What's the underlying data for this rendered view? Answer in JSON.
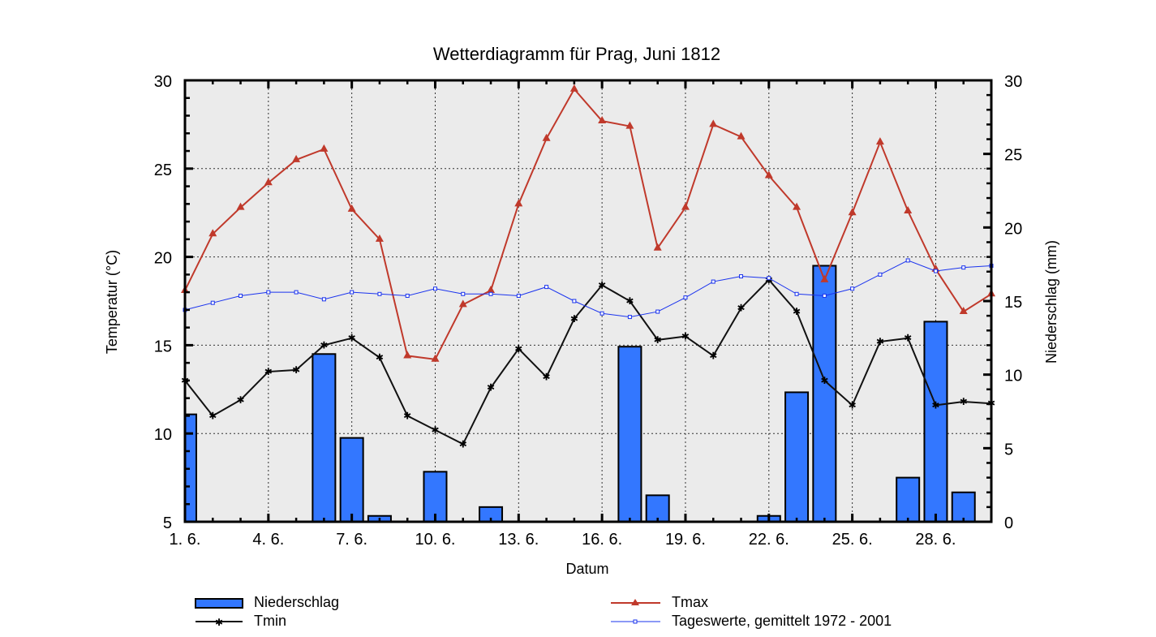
{
  "chart_data": {
    "type": "bar+line",
    "title": "Wetterdiagramm für Prag, Juni 1812",
    "xlabel": "Datum",
    "ylabel_left": "Temperatur (°C)",
    "ylabel_right": "Niederschlag (mm)",
    "ylim_left": [
      5,
      30
    ],
    "ylim_right": [
      0,
      30
    ],
    "yticks_left": [
      "5",
      "10",
      "15",
      "20",
      "25",
      "30"
    ],
    "yticks_right": [
      "0",
      "5",
      "10",
      "15",
      "20",
      "25",
      "30"
    ],
    "xlim_days": [
      1,
      30
    ],
    "xticks": [
      {
        "day": 1,
        "label": "1. 6."
      },
      {
        "day": 4,
        "label": "4. 6."
      },
      {
        "day": 7,
        "label": "7. 6."
      },
      {
        "day": 10,
        "label": "10. 6."
      },
      {
        "day": 13,
        "label": "13. 6."
      },
      {
        "day": 16,
        "label": "16. 6."
      },
      {
        "day": 19,
        "label": "19. 6."
      },
      {
        "day": 22,
        "label": "22. 6."
      },
      {
        "day": 25,
        "label": "25. 6."
      },
      {
        "day": 28,
        "label": "28. 6."
      }
    ],
    "grid": true,
    "legend_position": "bottom",
    "days": [
      1,
      2,
      3,
      4,
      5,
      6,
      7,
      8,
      9,
      10,
      11,
      12,
      13,
      14,
      15,
      16,
      17,
      18,
      19,
      20,
      21,
      22,
      23,
      24,
      25,
      26,
      27,
      28,
      29,
      30
    ],
    "series": [
      {
        "name": "Niederschlag",
        "type": "bar",
        "axis": "right",
        "color": "#3377ff",
        "values": [
          7.3,
          0,
          0,
          0,
          0,
          11.4,
          5.7,
          0.4,
          0,
          3.4,
          0,
          1.0,
          0,
          0,
          0,
          0,
          11.9,
          1.8,
          0,
          0,
          0,
          0.4,
          8.8,
          17.4,
          0,
          0,
          3.0,
          13.6,
          2.0,
          0
        ]
      },
      {
        "name": "Tmax",
        "type": "line",
        "axis": "left",
        "color": "#c0392b",
        "marker": "triangle",
        "values": [
          18.1,
          21.3,
          22.8,
          24.2,
          25.5,
          26.1,
          22.7,
          21.0,
          14.4,
          14.2,
          17.3,
          18.1,
          23.0,
          26.7,
          29.5,
          27.7,
          27.4,
          20.5,
          22.8,
          27.5,
          26.8,
          24.6,
          22.8,
          18.7,
          22.5,
          26.5,
          22.6,
          19.3,
          16.9,
          17.9
        ]
      },
      {
        "name": "Tmin",
        "type": "line",
        "axis": "left",
        "color": "#111111",
        "marker": "star",
        "values": [
          13.0,
          11.0,
          11.9,
          13.5,
          13.6,
          15.0,
          15.4,
          14.3,
          11.0,
          10.2,
          9.4,
          12.6,
          14.8,
          13.2,
          16.5,
          18.4,
          17.5,
          15.3,
          15.5,
          14.4,
          17.1,
          18.7,
          16.9,
          13.0,
          11.6,
          15.2,
          15.4,
          11.6,
          11.8,
          11.7
        ]
      },
      {
        "name": "Tageswerte, gemittelt 1972 - 2001",
        "type": "line",
        "axis": "left",
        "color": "#1a33ee",
        "marker": "square",
        "values": [
          17.0,
          17.4,
          17.8,
          18.0,
          18.0,
          17.6,
          18.0,
          17.9,
          17.8,
          18.2,
          17.9,
          17.9,
          17.8,
          18.3,
          17.5,
          16.8,
          16.6,
          16.9,
          17.7,
          18.6,
          18.9,
          18.8,
          17.9,
          17.8,
          18.2,
          19.0,
          19.8,
          19.2,
          19.4,
          19.5
        ]
      }
    ]
  }
}
